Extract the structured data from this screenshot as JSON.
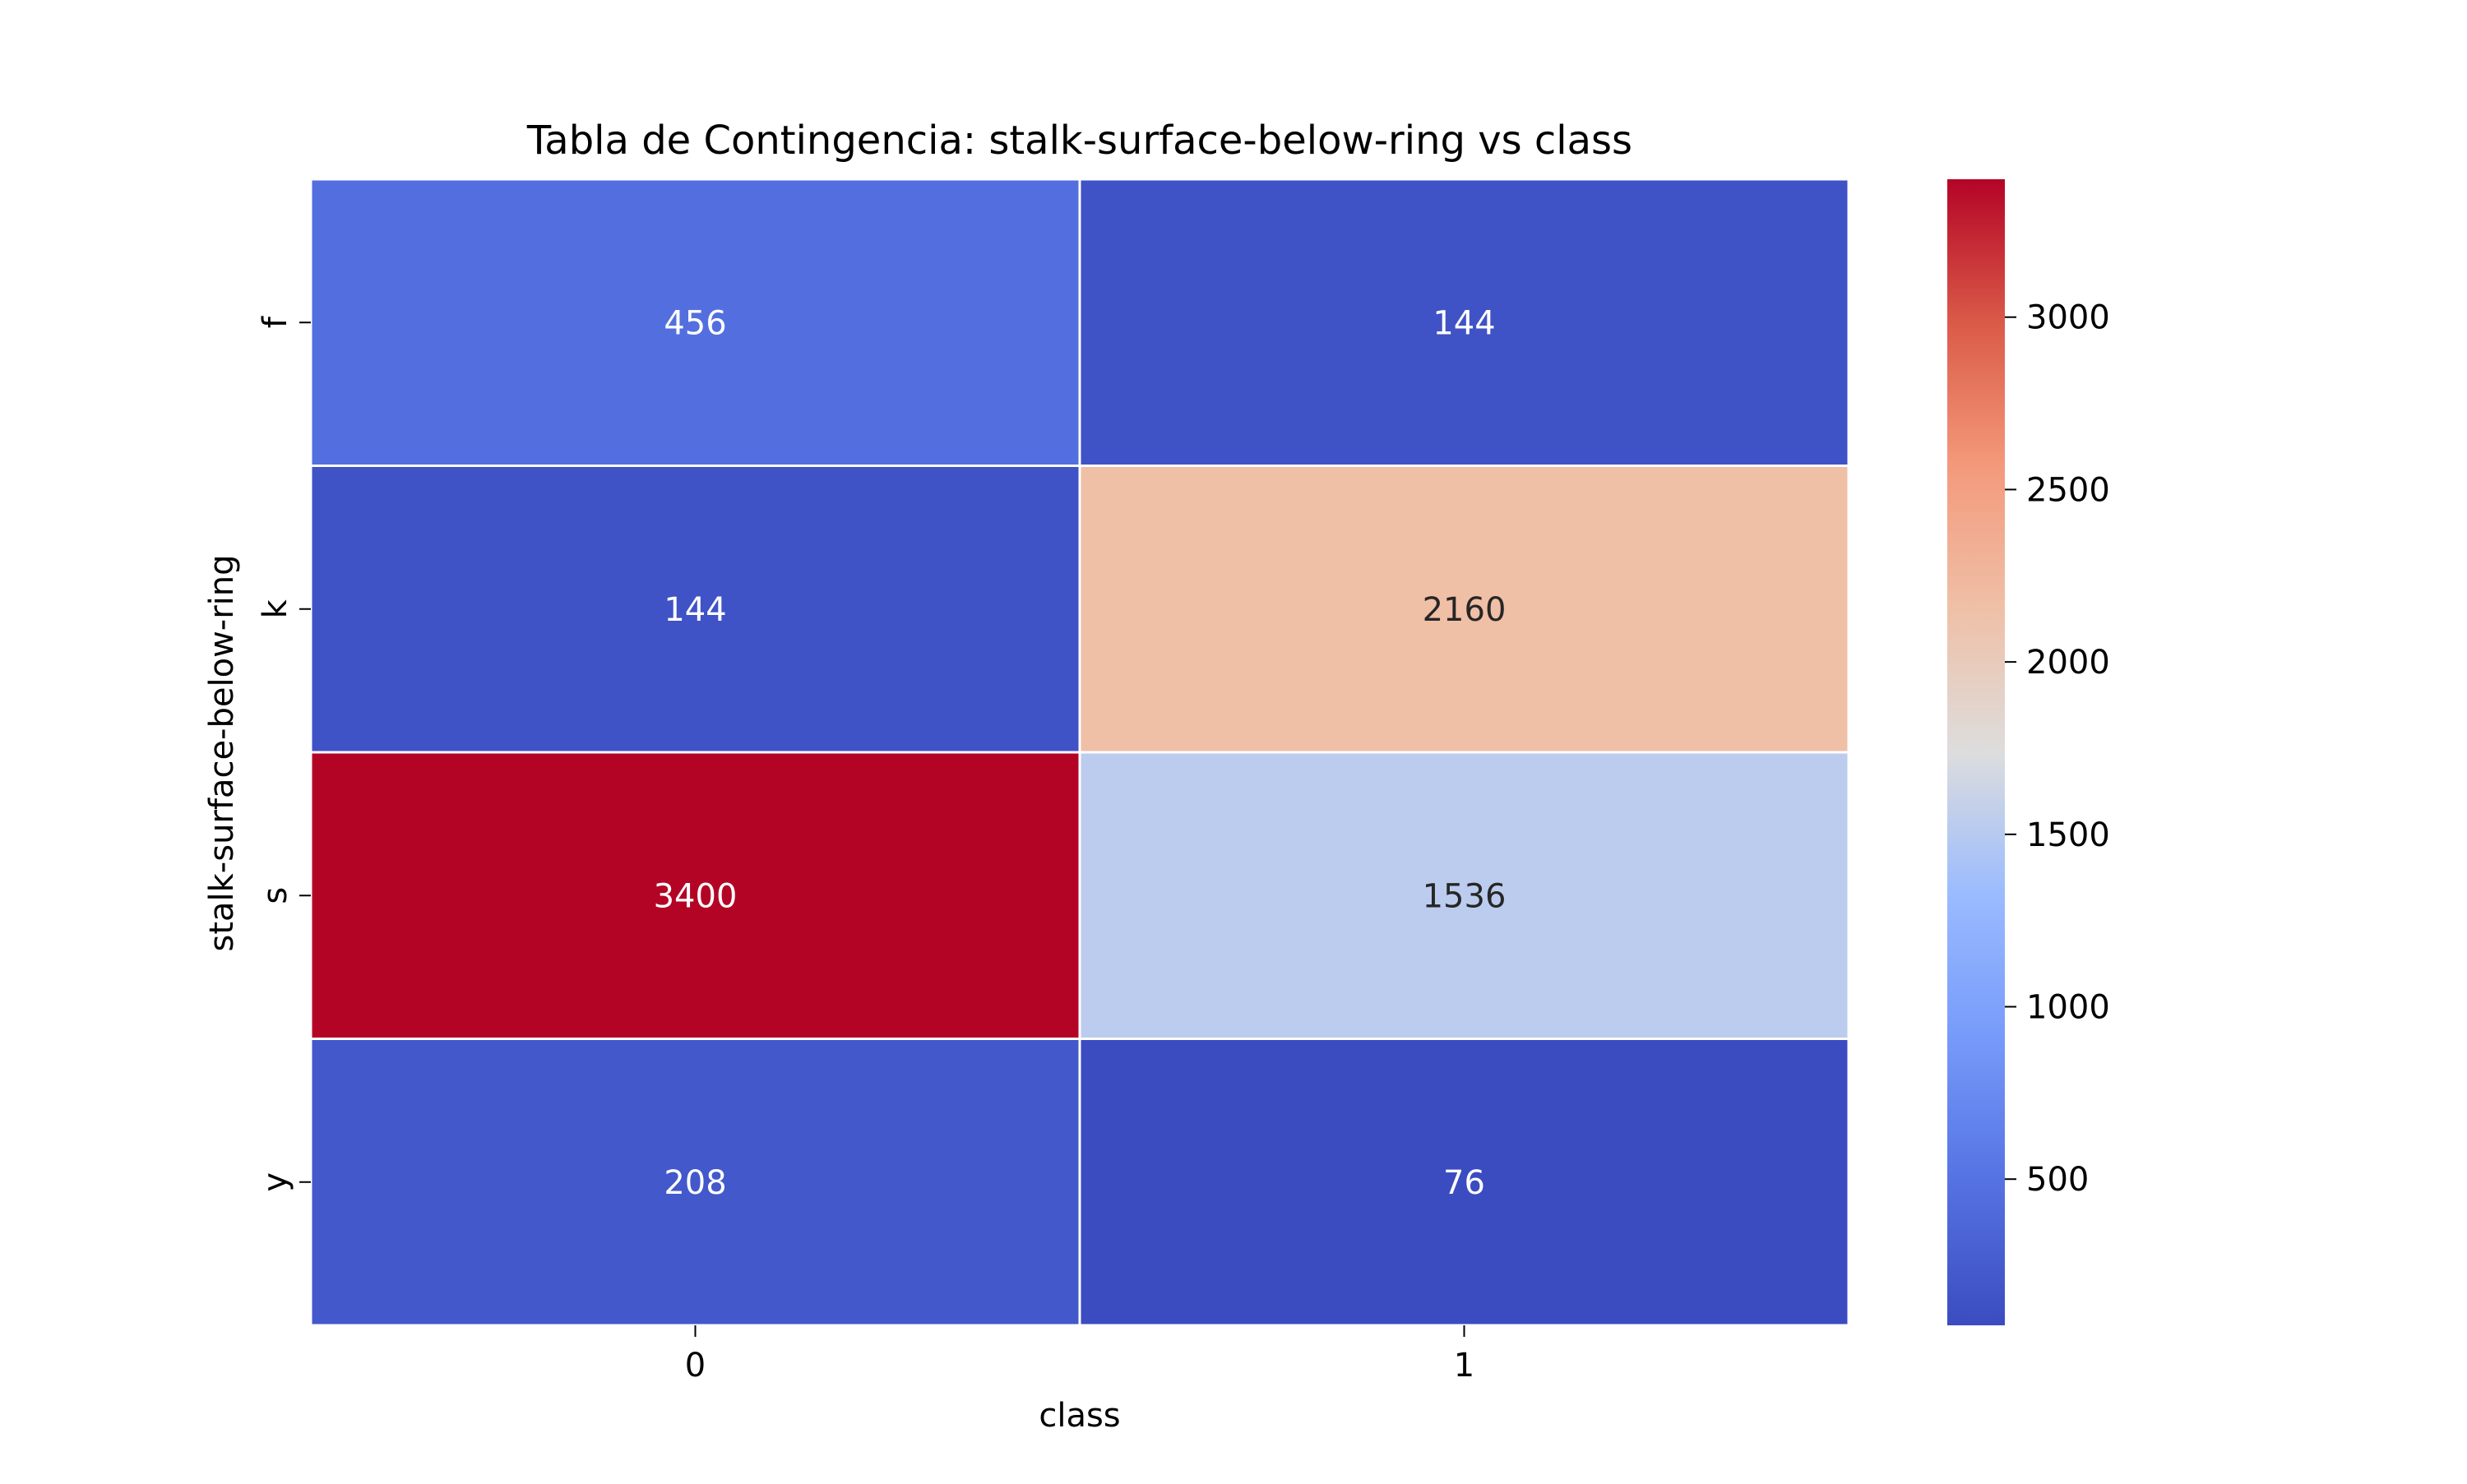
{
  "chart_data": {
    "type": "heatmap",
    "title": "Tabla de Contingencia: stalk-surface-below-ring vs class",
    "xlabel": "class",
    "ylabel": "stalk-surface-below-ring",
    "x_categories": [
      "0",
      "1"
    ],
    "y_categories": [
      "f",
      "k",
      "s",
      "y"
    ],
    "values": [
      [
        456,
        144
      ],
      [
        144,
        2160
      ],
      [
        3400,
        1536
      ],
      [
        208,
        76
      ]
    ],
    "colormap": "coolwarm",
    "colorbar": {
      "range": [
        76,
        3400
      ],
      "ticks": [
        500,
        1000,
        1500,
        2000,
        2500,
        3000
      ]
    },
    "annotations": true,
    "cell_border_color": "#ffffff"
  }
}
